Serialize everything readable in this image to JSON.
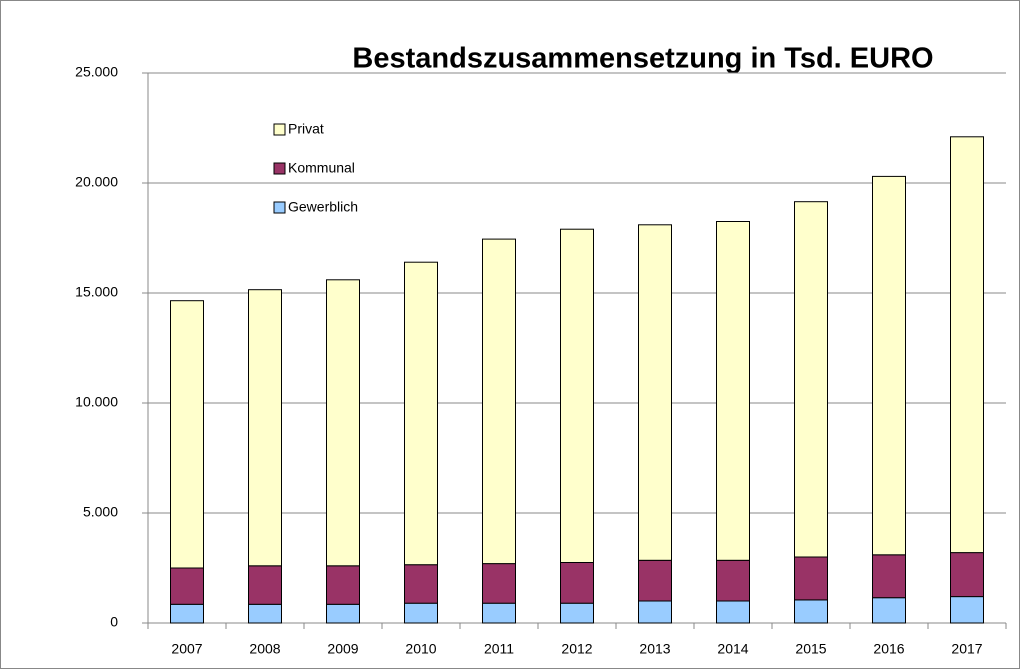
{
  "chart_data": {
    "type": "bar",
    "stacked": true,
    "title": "Bestandszusammensetzung in Tsd. EURO",
    "categories": [
      "2007",
      "2008",
      "2009",
      "2010",
      "2011",
      "2012",
      "2013",
      "2014",
      "2015",
      "2016",
      "2017"
    ],
    "series": [
      {
        "name": "Gewerblich",
        "color": "#99ccff",
        "values": [
          850,
          850,
          850,
          900,
          900,
          900,
          1000,
          1000,
          1050,
          1150,
          1200
        ]
      },
      {
        "name": "Kommunal",
        "color": "#993366",
        "values": [
          1650,
          1750,
          1750,
          1750,
          1800,
          1850,
          1850,
          1850,
          1950,
          1950,
          2000
        ]
      },
      {
        "name": "Privat",
        "color": "#ffffcc",
        "values": [
          12150,
          12550,
          13000,
          13750,
          14750,
          15150,
          15250,
          15400,
          16150,
          17200,
          18900
        ]
      }
    ],
    "ylim": [
      0,
      25000
    ],
    "yticks": [
      0,
      {
        "value": 5000,
        "label": "5.000"
      },
      {
        "value": 10000,
        "label": "10.000"
      },
      {
        "value": 15000,
        "label": "15.000"
      },
      {
        "value": 20000,
        "label": "20.000"
      },
      {
        "value": 25000,
        "label": "25.000"
      }
    ],
    "grid": true
  }
}
